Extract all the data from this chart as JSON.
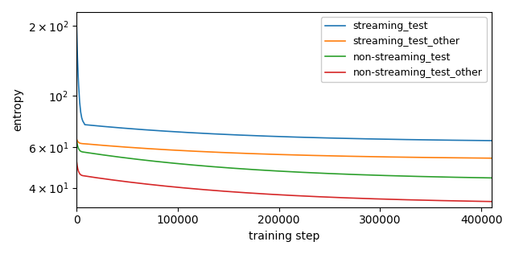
{
  "title": "",
  "xlabel": "training step",
  "ylabel": "entropy",
  "series": [
    {
      "label": "streaming_test",
      "color": "#1f77b4",
      "init_high": 200,
      "init_drop_at": 8000,
      "settle_val": 75,
      "end_val": 63
    },
    {
      "label": "streaming_test_other",
      "color": "#ff7f0e",
      "init_high": 65,
      "init_drop_at": 8000,
      "settle_val": 62,
      "end_val": 53
    },
    {
      "label": "non-streaming_test",
      "color": "#2ca02c",
      "init_high": 64,
      "init_drop_at": 8000,
      "settle_val": 57,
      "end_val": 43
    },
    {
      "label": "non-streaming_test_other",
      "color": "#d62728",
      "init_high": 52,
      "init_drop_at": 8000,
      "settle_val": 45,
      "end_val": 34
    }
  ],
  "xlim": [
    0,
    410000
  ],
  "ylim": [
    33,
    230
  ],
  "yticks": [
    40,
    60,
    100,
    200
  ],
  "ytick_labels": [
    "$4 \\times 10^1$",
    "$6 \\times 10^1$",
    "$10^2$",
    "$2 \\times 10^2$"
  ],
  "xticks": [
    0,
    100000,
    200000,
    300000,
    400000
  ],
  "xtick_labels": [
    "0",
    "100000",
    "200000",
    "300000",
    "400000"
  ],
  "legend_loc": "upper right"
}
